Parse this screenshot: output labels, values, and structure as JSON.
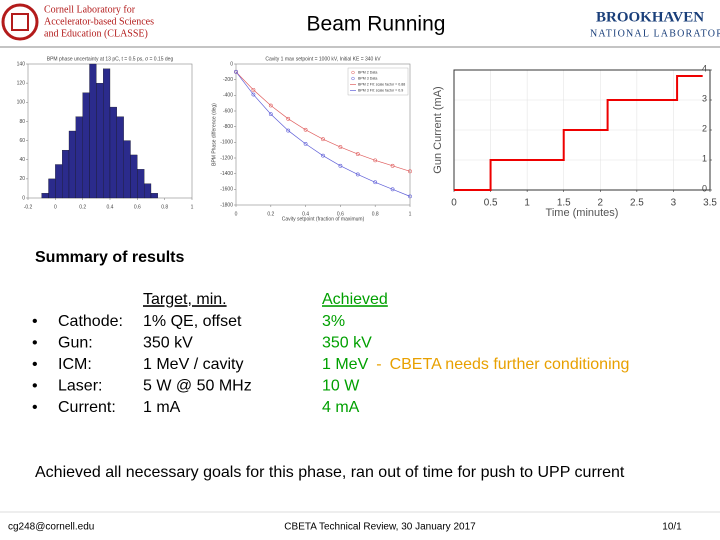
{
  "header": {
    "title": "Beam Running",
    "left_logo": {
      "lines": [
        "Cornell Laboratory for",
        "Accelerator-based Sciences",
        "and Education (CLASSE)"
      ]
    },
    "right_logo": {
      "name": "BROOKHAVEN",
      "sub": "NATIONAL LABORATORY"
    }
  },
  "chart_data": [
    {
      "type": "histogram",
      "title": "BPM phase uncertainty at 13 pC, t = 0.5 ps, σ = 0.15 deg",
      "bins": [
        -0.1,
        -0.05,
        0,
        0.05,
        0.1,
        0.15,
        0.2,
        0.25,
        0.3,
        0.35,
        0.4,
        0.45,
        0.5,
        0.55,
        0.6,
        0.65,
        0.7,
        0.75
      ],
      "values": [
        5,
        20,
        35,
        50,
        70,
        85,
        110,
        140,
        120,
        135,
        95,
        85,
        60,
        45,
        30,
        15,
        5
      ],
      "color": "#2b2b8c",
      "xlim": [
        -0.2,
        1
      ],
      "xticks": [
        -0.2,
        0,
        0.2,
        0.4,
        0.6,
        0.8,
        1
      ],
      "ylim": [
        0,
        140
      ],
      "yticks": [
        0,
        20,
        40,
        60,
        80,
        100,
        120,
        140
      ],
      "grid": false
    },
    {
      "type": "line",
      "title": "Cavity 1 max setpoint = 1000 kV, Initial KE = 340 kV",
      "x_label": "Cavity setpoint (fraction of maximum)",
      "y_label": "BPM Phase difference (deg)",
      "x": [
        0,
        0.1,
        0.2,
        0.3,
        0.4,
        0.5,
        0.6,
        0.7,
        0.8,
        0.9,
        1
      ],
      "series": [
        {
          "name": "BPM 2 Data",
          "color": "#e06060",
          "style": "markers",
          "values": [
            -100,
            -330,
            -530,
            -700,
            -840,
            -960,
            -1060,
            -1150,
            -1230,
            -1300,
            -1370
          ]
        },
        {
          "name": "BPM 3 Data",
          "color": "#6060d8",
          "style": "markers",
          "values": [
            -100,
            -390,
            -640,
            -850,
            -1020,
            -1170,
            -1300,
            -1410,
            -1510,
            -1600,
            -1690
          ]
        },
        {
          "name": "BPM 2 Fit: scale factor = 0.88",
          "color": "#e06060",
          "style": "line",
          "values": [
            -100,
            -330,
            -530,
            -700,
            -840,
            -960,
            -1060,
            -1150,
            -1230,
            -1300,
            -1370
          ]
        },
        {
          "name": "BPM 3 Fit: scale factor = 0.9",
          "color": "#6060d8",
          "style": "line",
          "values": [
            -100,
            -390,
            -640,
            -850,
            -1020,
            -1170,
            -1300,
            -1410,
            -1510,
            -1600,
            -1690
          ]
        }
      ],
      "xlim": [
        0,
        1
      ],
      "xticks": [
        0,
        0.2,
        0.4,
        0.6,
        0.8,
        1
      ],
      "ylim": [
        -1800,
        0
      ],
      "yticks": [
        0,
        -200,
        -400,
        -600,
        -800,
        -1000,
        -1200,
        -1400,
        -1600,
        -1800
      ],
      "grid": false,
      "legend": "upper-right"
    },
    {
      "type": "line",
      "x_label": "Time (minutes)",
      "y_label": "Gun Current (mA)",
      "x": [
        0,
        0.5,
        0.5,
        1.5,
        1.5,
        2.1,
        2.1,
        3.05,
        3.05,
        3.4
      ],
      "series": [
        {
          "color": "#ee0000",
          "style": "line",
          "values": [
            0,
            0,
            1,
            1,
            2,
            2,
            3,
            3,
            3.8,
            3.8
          ]
        }
      ],
      "xlim": [
        0,
        3.5
      ],
      "xticks": [
        0,
        0.5,
        1,
        1.5,
        2,
        2.5,
        3,
        3.5
      ],
      "ylim": [
        0,
        4
      ],
      "yticks": [
        0,
        1,
        2,
        3,
        4
      ],
      "grid": true
    }
  ],
  "summary": {
    "heading": "Summary of results",
    "target_header": "Target, min.",
    "achieved_header": "Achieved",
    "rows": [
      {
        "label": "Cathode:",
        "target": "1% QE, offset",
        "achieved": "3%"
      },
      {
        "label": "Gun:",
        "target": "350 kV",
        "achieved": "350 kV"
      },
      {
        "label": "ICM:",
        "target": "1 MeV / cavity",
        "achieved": "1 MeV",
        "separator": "-",
        "note": "CBETA needs further conditioning"
      },
      {
        "label": "Laser:",
        "target": "5 W @ 50 MHz",
        "achieved": "10 W"
      },
      {
        "label": "Current:",
        "target": "1 mA",
        "achieved": "4 mA"
      }
    ],
    "conclusion": "Achieved all necessary goals for this phase, ran out of time for push to UPP current"
  },
  "footer": {
    "email": "cg248@cornell.edu",
    "event": "CBETA Technical Review, 30 January 2017",
    "page": "10/1"
  }
}
